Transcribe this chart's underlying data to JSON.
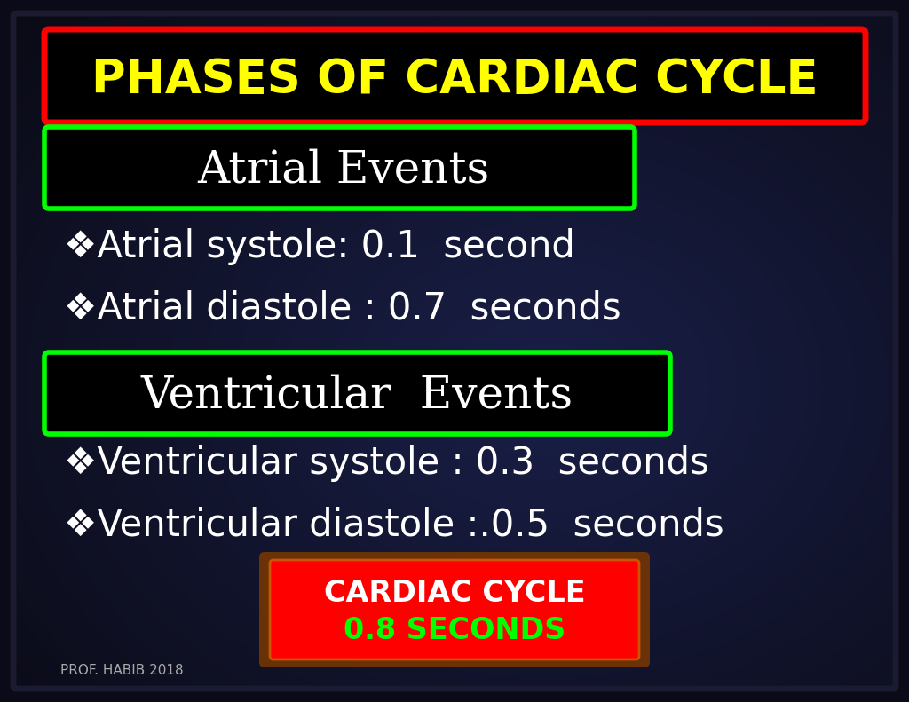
{
  "title": "PHASES OF CARDIAC CYCLE",
  "title_color": "#FFFF00",
  "title_box_edgecolor": "#FF0000",
  "title_fontsize": 38,
  "subtitle1": "Atrial Events",
  "subtitle1_color": "#FFFFFF",
  "subtitle1_box_edgecolor": "#00FF00",
  "subtitle1_fontsize": 36,
  "bullet1": "❖Atrial systole: 0.1  second",
  "bullet2": "❖Atrial diastole : 0.7  seconds",
  "bullet_color": "#FFFFFF",
  "bullet_fontsize": 30,
  "subtitle2": "Ventricular  Events",
  "subtitle2_color": "#FFFFFF",
  "subtitle2_box_edgecolor": "#00FF00",
  "subtitle2_fontsize": 36,
  "bullet3": "❖Ventricular systole : 0.3  seconds",
  "bullet4": "❖Ventricular diastole :.0.5  seconds",
  "footer_line1": "CARDIAC CYCLE",
  "footer_line2": "0.8 SECONDS",
  "footer_line1_color": "#FFFFFF",
  "footer_line2_color": "#00FF00",
  "footer_box_edgecolor": "#CC6600",
  "footer_box_facecolor": "#FF0000",
  "footer_fontsize": 24,
  "credit": "PROF. HABIB 2018",
  "credit_color": "#AAAAAA",
  "credit_fontsize": 11,
  "outer_border_color": "#111122",
  "inner_border_color": "#222233"
}
